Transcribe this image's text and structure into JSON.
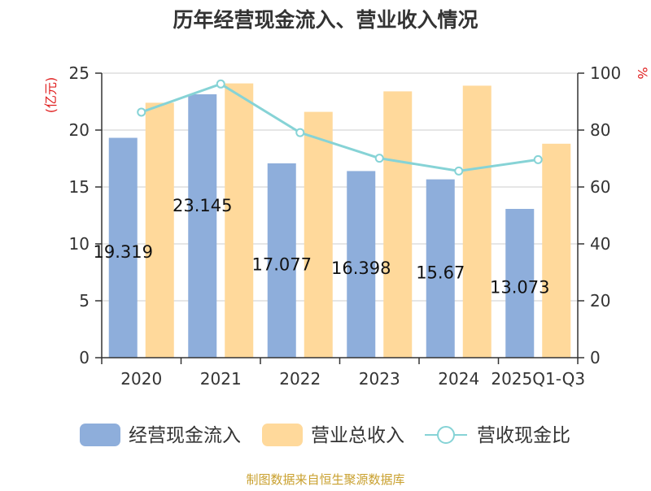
{
  "chart_data": {
    "type": "bar",
    "title": "历年经营现金流入、营业收入情况",
    "categories": [
      "2020",
      "2021",
      "2022",
      "2023",
      "2024",
      "2025Q1-Q3"
    ],
    "y_left": {
      "unit": "(亿元)",
      "ylim": [
        0,
        25
      ],
      "ticks": [
        0,
        5,
        10,
        15,
        20,
        25
      ]
    },
    "y_right": {
      "unit": "%",
      "ylim": [
        0,
        100
      ],
      "ticks": [
        0,
        20,
        40,
        60,
        80,
        100
      ]
    },
    "series": [
      {
        "name": "经营现金流入",
        "type": "bar",
        "axis": "left",
        "color": "#8eaedb",
        "values": [
          19.319,
          23.145,
          17.077,
          16.398,
          15.67,
          13.073
        ],
        "labels": [
          "19.319",
          "23.145",
          "17.077",
          "16.398",
          "15.67",
          "13.073"
        ]
      },
      {
        "name": "营业总收入",
        "type": "bar",
        "axis": "left",
        "color": "#ffd99b",
        "values": [
          22.4,
          24.1,
          21.6,
          23.4,
          23.9,
          18.8
        ]
      },
      {
        "name": "营收现金比",
        "type": "line",
        "axis": "right",
        "color": "#86d3d6",
        "values": [
          86.3,
          96.2,
          79.1,
          70.1,
          65.6,
          69.6
        ]
      }
    ],
    "grid": true,
    "legend": "bottom"
  },
  "footer": {
    "source": "制图数据来自恒生聚源数据库"
  }
}
